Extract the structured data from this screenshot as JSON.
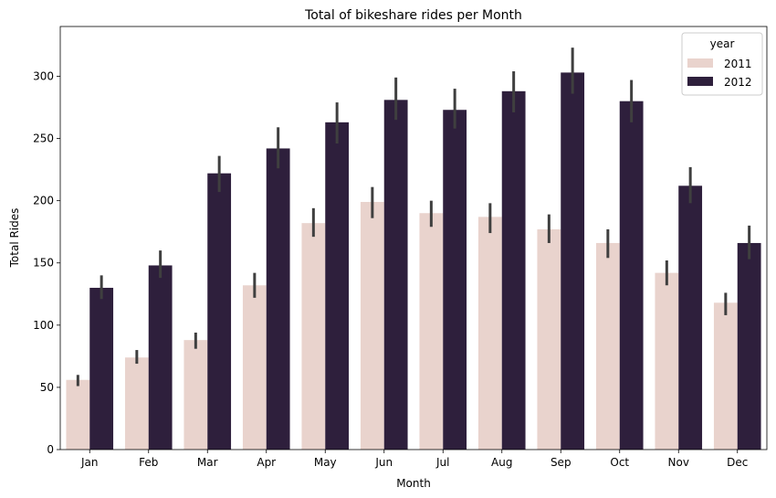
{
  "chart_data": {
    "type": "bar",
    "title": "Total of bikeshare rides per Month",
    "xlabel": "Month",
    "ylabel": "Total Rides",
    "categories": [
      "Jan",
      "Feb",
      "Mar",
      "Apr",
      "May",
      "Jun",
      "Jul",
      "Aug",
      "Sep",
      "Oct",
      "Nov",
      "Dec"
    ],
    "ylim": [
      0,
      340
    ],
    "yticks": [
      0,
      50,
      100,
      150,
      200,
      250,
      300
    ],
    "legend": {
      "title": "year",
      "placement": "top-right"
    },
    "series": [
      {
        "name": "2011",
        "color": "#e9d3cd",
        "values": [
          56,
          74,
          88,
          132,
          182,
          199,
          190,
          187,
          177,
          166,
          142,
          118
        ],
        "err_low": [
          51,
          69,
          81,
          122,
          171,
          186,
          179,
          174,
          166,
          154,
          132,
          108
        ],
        "err_high": [
          60,
          80,
          94,
          142,
          194,
          211,
          200,
          198,
          189,
          177,
          152,
          126
        ]
      },
      {
        "name": "2012",
        "color": "#2e1f3c",
        "values": [
          130,
          148,
          222,
          242,
          263,
          281,
          273,
          288,
          303,
          280,
          212,
          166
        ],
        "err_low": [
          121,
          138,
          207,
          226,
          246,
          265,
          258,
          271,
          286,
          263,
          198,
          153
        ],
        "err_high": [
          140,
          160,
          236,
          259,
          279,
          299,
          290,
          304,
          323,
          297,
          227,
          180
        ]
      }
    ],
    "errbar_color": "#3f3f3f",
    "grid": false
  }
}
